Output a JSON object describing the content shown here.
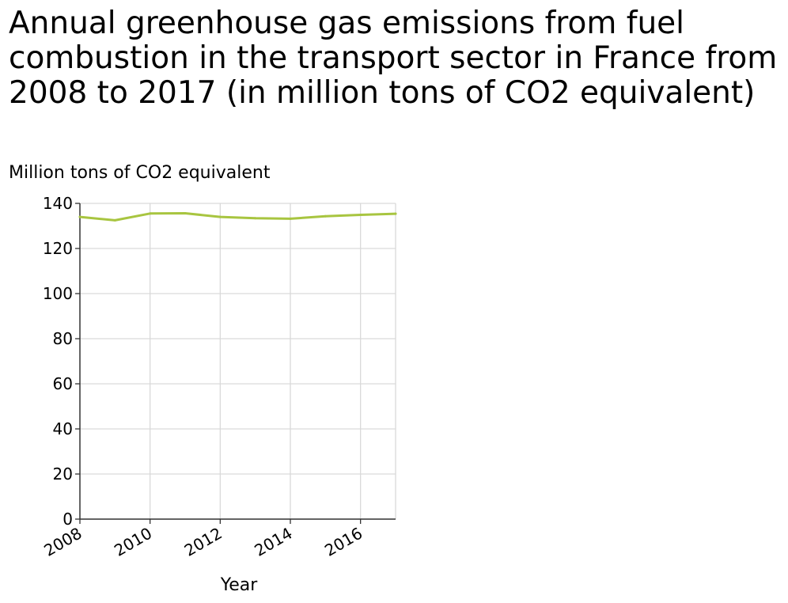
{
  "chart_data": {
    "type": "line",
    "title": "Annual greenhouse gas emissions from fuel combustion in the transport sector in France from 2008 to 2017 (in million tons of CO2 equivalent)",
    "xlabel": "Year",
    "ylabel": "Million tons of CO2 equivalent",
    "xlim": [
      2008,
      2017
    ],
    "ylim": [
      0,
      140
    ],
    "x_ticks": [
      2008,
      2010,
      2012,
      2014,
      2016
    ],
    "y_ticks": [
      0,
      20,
      40,
      60,
      80,
      100,
      120,
      140
    ],
    "grid": true,
    "series": [
      {
        "color": "#a8c540",
        "x": [
          2008,
          2009,
          2010,
          2011,
          2012,
          2013,
          2014,
          2015,
          2016,
          2017
        ],
        "values": [
          134.0,
          132.5,
          135.5,
          135.6,
          134.0,
          133.4,
          133.2,
          134.3,
          134.9,
          135.4
        ]
      }
    ]
  }
}
